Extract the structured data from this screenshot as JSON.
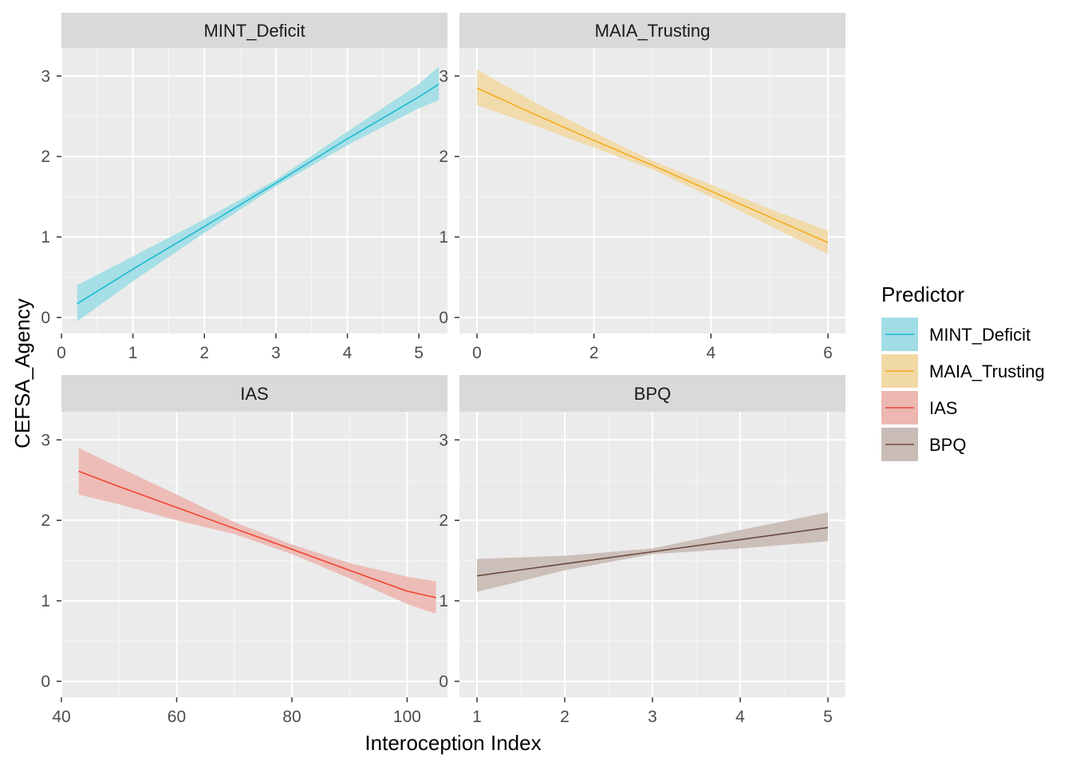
{
  "chart_data": {
    "type": "line",
    "xlabel": "Interoception Index",
    "ylabel": "CEFSA_Agency",
    "legend": {
      "title": "Predictor",
      "position": "right"
    },
    "grid": true,
    "panels": [
      {
        "name": "MINT_Deficit",
        "color": "#1DB9D4",
        "fill": "#A0DDE5",
        "xlim": [
          0,
          5.4
        ],
        "ylim": [
          -0.2,
          3.35
        ],
        "xticks": [
          "0",
          "1",
          "2",
          "3",
          "4",
          "5"
        ],
        "yticks": [
          "0",
          "1",
          "2",
          "3"
        ],
        "x": [
          0.22,
          1,
          2,
          3,
          4,
          5,
          5.28
        ],
        "y": [
          0.17,
          0.6,
          1.13,
          1.67,
          2.22,
          2.74,
          2.9
        ],
        "lower": [
          -0.05,
          0.45,
          1.05,
          1.63,
          2.14,
          2.6,
          2.7
        ],
        "upper": [
          0.4,
          0.76,
          1.22,
          1.71,
          2.31,
          2.9,
          3.12
        ]
      },
      {
        "name": "MAIA_Trusting",
        "color": "#F5A91D",
        "fill": "#F1D9A6",
        "xlim": [
          -0.3,
          6.3
        ],
        "ylim": [
          -0.2,
          3.35
        ],
        "xticks": [
          "0",
          "2",
          "4",
          "6"
        ],
        "yticks": [
          "0",
          "1",
          "2",
          "3"
        ],
        "x": [
          0,
          1,
          2,
          3,
          4,
          5,
          6
        ],
        "y": [
          2.85,
          2.52,
          2.2,
          1.89,
          1.57,
          1.25,
          0.93
        ],
        "lower": [
          2.64,
          2.38,
          2.11,
          1.84,
          1.5,
          1.14,
          0.79
        ],
        "upper": [
          3.08,
          2.67,
          2.3,
          1.95,
          1.65,
          1.35,
          1.08
        ]
      },
      {
        "name": "IAS",
        "color": "#F04530",
        "fill": "#EDB7B2",
        "xlim": [
          40,
          107
        ],
        "ylim": [
          -0.2,
          3.35
        ],
        "xticks": [
          "40",
          "60",
          "80",
          "100"
        ],
        "yticks": [
          "0",
          "1",
          "2",
          "3"
        ],
        "x": [
          43,
          50,
          60,
          70,
          80,
          90,
          100,
          105
        ],
        "y": [
          2.61,
          2.42,
          2.16,
          1.9,
          1.64,
          1.38,
          1.12,
          1.04
        ],
        "lower": [
          2.32,
          2.2,
          2.0,
          1.83,
          1.58,
          1.28,
          0.96,
          0.84
        ],
        "upper": [
          2.9,
          2.66,
          2.32,
          1.98,
          1.7,
          1.47,
          1.3,
          1.24
        ]
      },
      {
        "name": "BPQ",
        "color": "#6B4A3E",
        "fill": "#C9BBB5",
        "xlim": [
          0.8,
          5.2
        ],
        "ylim": [
          -0.2,
          3.35
        ],
        "xticks": [
          "1",
          "2",
          "3",
          "4",
          "5"
        ],
        "yticks": [
          "0",
          "1",
          "2",
          "3"
        ],
        "x": [
          1,
          2,
          3,
          4,
          5
        ],
        "y": [
          1.31,
          1.46,
          1.61,
          1.76,
          1.91
        ],
        "lower": [
          1.11,
          1.38,
          1.58,
          1.65,
          1.74
        ],
        "upper": [
          1.52,
          1.56,
          1.65,
          1.88,
          2.1
        ]
      }
    ]
  }
}
